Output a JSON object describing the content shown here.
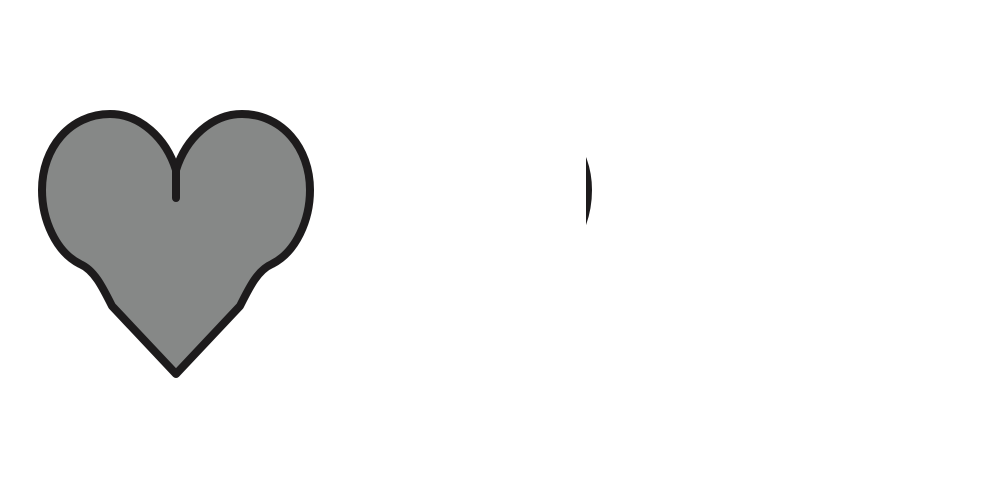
{
  "rating": {
    "icon": "heart-icon",
    "max": 5,
    "value": 1.5,
    "fill_color": "#868887",
    "outline_color": "#1d1b1c"
  }
}
